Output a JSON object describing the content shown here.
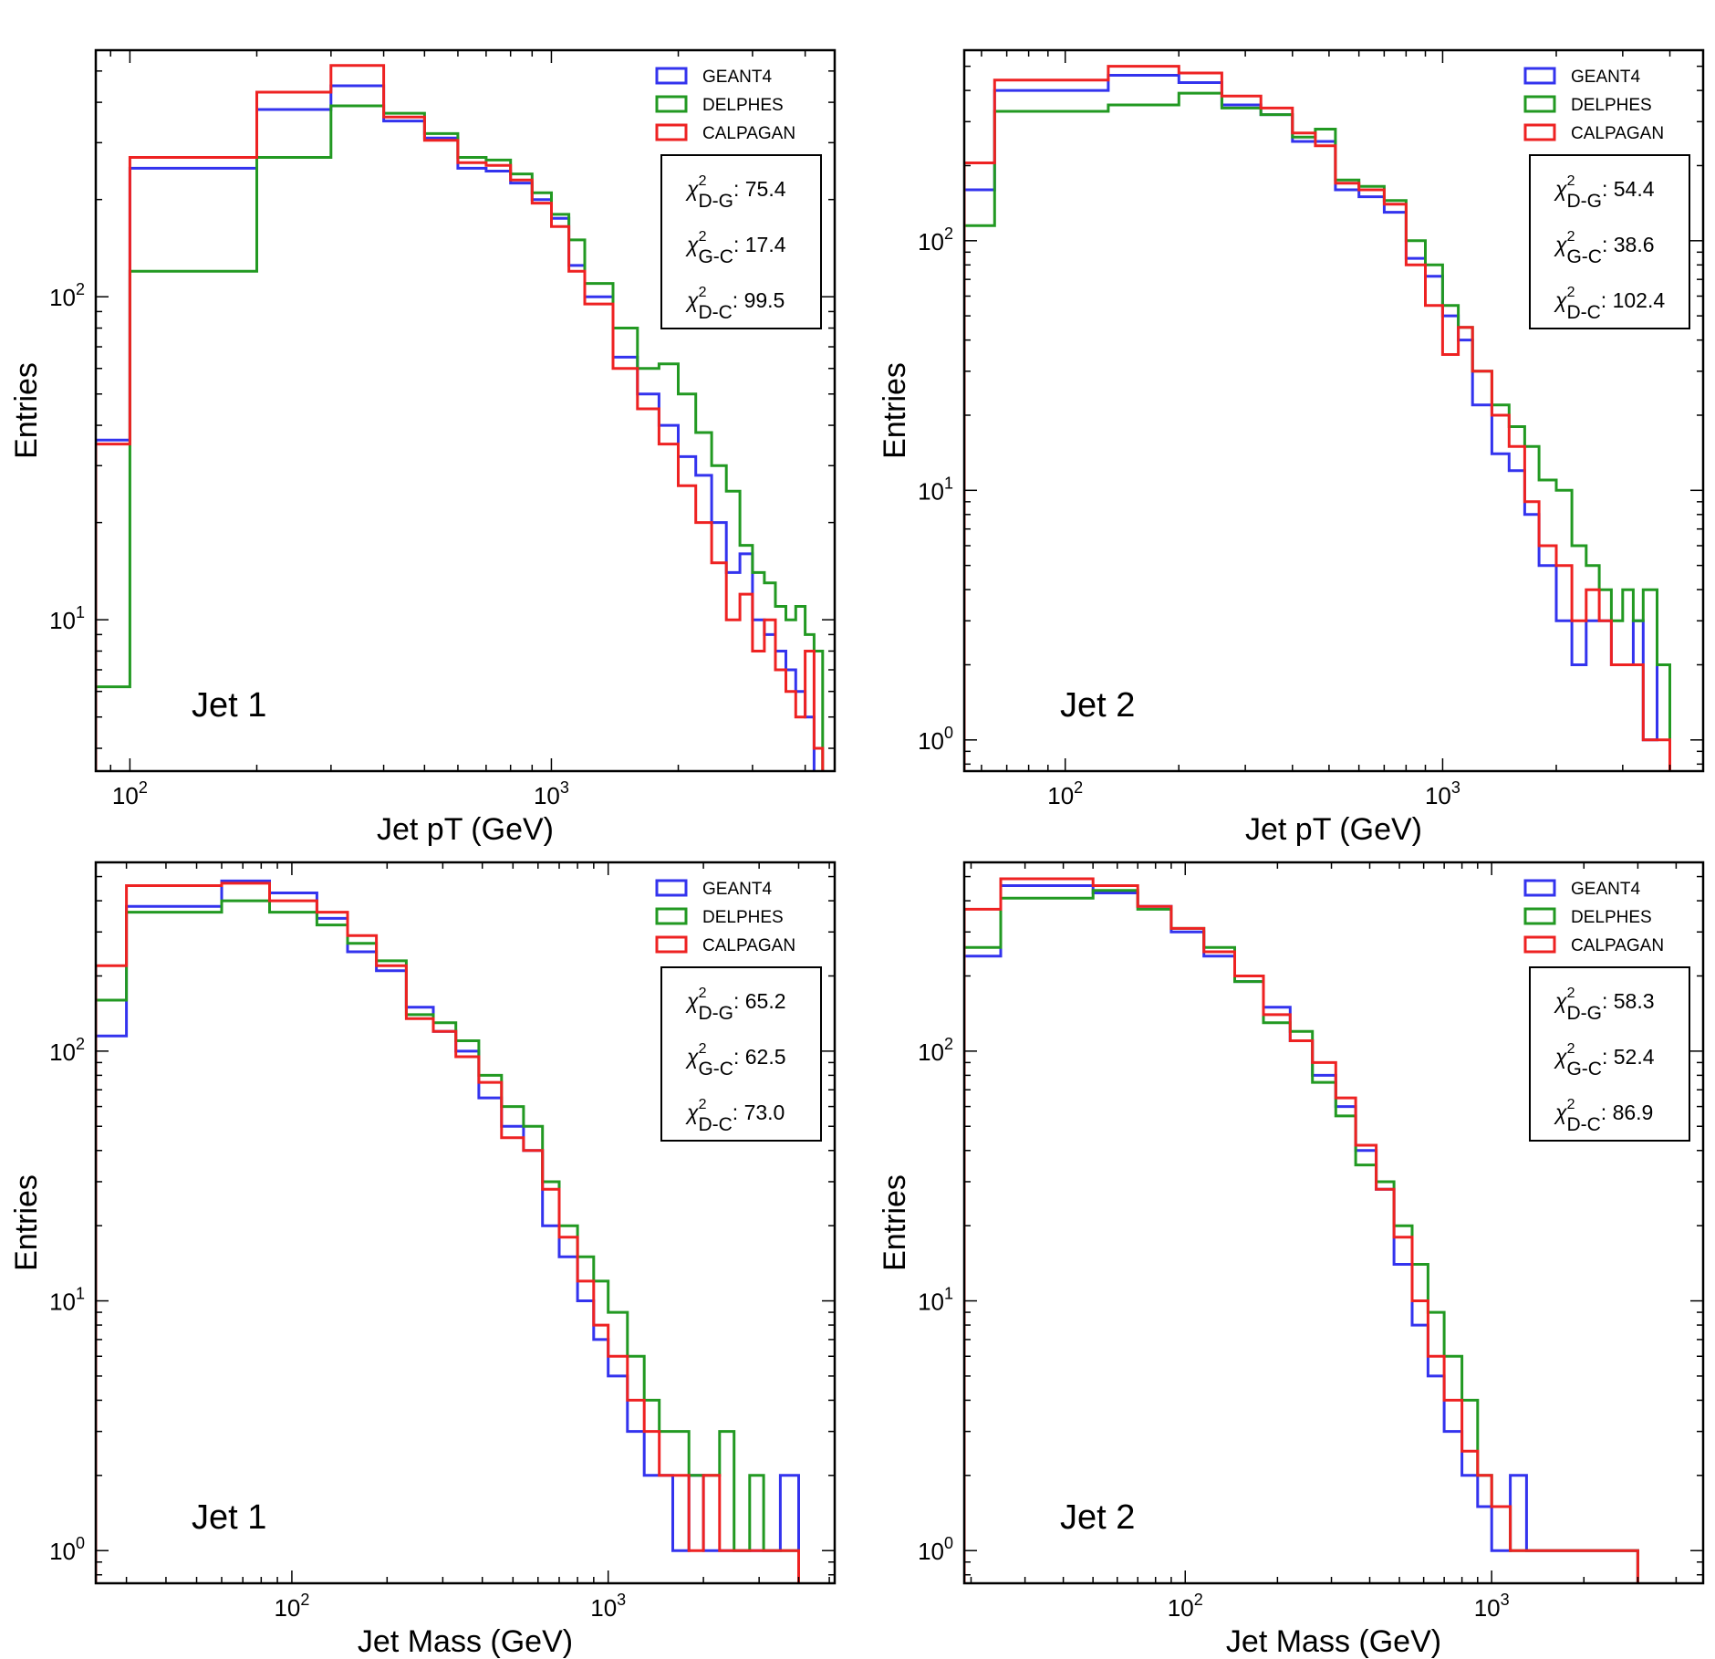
{
  "figure": {
    "title": ""
  },
  "chart_data": [
    {
      "id": "p1",
      "type": "histogram-step",
      "x_scale": "log",
      "y_scale": "log",
      "xlabel": "Jet pT (GeV)",
      "ylabel": "Entries",
      "xlim": [
        83,
        4700
      ],
      "ylim": [
        3.4,
        580
      ],
      "x_ticks": [
        {
          "base": "10",
          "exp": "2"
        },
        {
          "base": "10",
          "exp": "3"
        }
      ],
      "y_ticks": [
        {
          "base": "10",
          "exp": "1"
        },
        {
          "base": "10",
          "exp": "2"
        }
      ],
      "y_tick_values": [
        10,
        100
      ],
      "x_tick_values": [
        100,
        1000
      ],
      "annotation": "Jet 1",
      "chi2": [
        {
          "label": "χ",
          "sup": "2",
          "sub": "D-G",
          "value": ": 75.4"
        },
        {
          "label": "χ",
          "sup": "2",
          "sub": "G-C",
          "value": ": 17.4"
        },
        {
          "label": "χ",
          "sup": "2",
          "sub": "D-C",
          "value": ": 99.5"
        }
      ],
      "edges": [
        83,
        100,
        200,
        300,
        400,
        500,
        600,
        700,
        800,
        900,
        1000,
        1100,
        1200,
        1400,
        1600,
        1800,
        2000,
        2200,
        2400,
        2600,
        2800,
        3000,
        3200,
        3400,
        3600,
        3800,
        4000,
        4200,
        4400
      ],
      "series": [
        {
          "name": "GEANT4",
          "color": "#3333ee",
          "values": [
            36,
            250,
            380,
            450,
            350,
            310,
            250,
            245,
            225,
            200,
            175,
            125,
            100,
            65,
            50,
            40,
            32,
            28,
            20,
            14,
            16,
            10,
            9,
            8,
            7,
            6,
            5,
            3
          ]
        },
        {
          "name": "DELPHES",
          "color": "#229922",
          "values": [
            6.2,
            120,
            270,
            390,
            370,
            320,
            270,
            265,
            240,
            210,
            180,
            150,
            110,
            80,
            60,
            62,
            50,
            38,
            30,
            25,
            17,
            14,
            13,
            11,
            10,
            11,
            9,
            8
          ]
        },
        {
          "name": "CALPAGAN",
          "color": "#ee2222",
          "values": [
            35,
            270,
            430,
            520,
            360,
            305,
            260,
            255,
            230,
            195,
            165,
            120,
            95,
            60,
            45,
            35,
            26,
            20,
            15,
            10,
            12,
            8,
            10,
            7,
            6,
            5,
            8,
            4
          ]
        }
      ]
    },
    {
      "id": "p2",
      "type": "histogram-step",
      "x_scale": "log",
      "y_scale": "log",
      "xlabel": "Jet pT (GeV)",
      "ylabel": "Entries",
      "xlim": [
        54,
        4900
      ],
      "ylim": [
        0.75,
        580
      ],
      "x_ticks": [
        {
          "base": "10",
          "exp": "2"
        },
        {
          "base": "10",
          "exp": "3"
        }
      ],
      "y_ticks": [
        {
          "base": "10",
          "exp": "0"
        },
        {
          "base": "10",
          "exp": "1"
        },
        {
          "base": "10",
          "exp": "2"
        }
      ],
      "y_tick_values": [
        1,
        10,
        100
      ],
      "x_tick_values": [
        100,
        1000
      ],
      "annotation": "Jet 2",
      "chi2": [
        {
          "label": "χ",
          "sup": "2",
          "sub": "D-G",
          "value": ": 54.4"
        },
        {
          "label": "χ",
          "sup": "2",
          "sub": "G-C",
          "value": ": 38.6"
        },
        {
          "label": "χ",
          "sup": "2",
          "sub": "D-C",
          "value": ": 102.4"
        }
      ],
      "edges": [
        54,
        65,
        130,
        200,
        260,
        330,
        400,
        460,
        520,
        600,
        700,
        800,
        900,
        1000,
        1100,
        1200,
        1350,
        1500,
        1650,
        1800,
        2000,
        2200,
        2400,
        2600,
        2800,
        3000,
        3200,
        3400,
        3700,
        4000
      ],
      "series": [
        {
          "name": "GEANT4",
          "color": "#3333ee",
          "values": [
            160,
            400,
            460,
            430,
            350,
            320,
            250,
            250,
            160,
            150,
            130,
            85,
            72,
            50,
            40,
            22,
            14,
            12,
            8,
            5,
            3,
            2,
            3,
            3,
            2,
            2,
            3,
            1,
            2
          ]
        },
        {
          "name": "DELPHES",
          "color": "#229922",
          "values": [
            115,
            330,
            350,
            390,
            340,
            320,
            260,
            280,
            175,
            165,
            145,
            100,
            80,
            55,
            45,
            30,
            22,
            18,
            15,
            11,
            10,
            6,
            5,
            4,
            3,
            4,
            3,
            4,
            2
          ]
        },
        {
          "name": "CALPAGAN",
          "color": "#ee2222",
          "values": [
            205,
            440,
            500,
            470,
            380,
            340,
            270,
            240,
            170,
            160,
            140,
            80,
            55,
            35,
            45,
            30,
            20,
            15,
            9,
            6,
            5,
            3,
            4,
            3,
            2,
            2,
            2,
            1,
            1
          ]
        }
      ]
    },
    {
      "id": "p3",
      "type": "histogram-step",
      "x_scale": "log",
      "y_scale": "log",
      "xlabel": "Jet Mass (GeV)",
      "ylabel": "Entries",
      "xlim": [
        24,
        5200
      ],
      "ylim": [
        0.74,
        570
      ],
      "x_ticks": [
        {
          "base": "10",
          "exp": "2"
        },
        {
          "base": "10",
          "exp": "3"
        }
      ],
      "y_ticks": [
        {
          "base": "10",
          "exp": "0"
        },
        {
          "base": "10",
          "exp": "1"
        },
        {
          "base": "10",
          "exp": "2"
        }
      ],
      "y_tick_values": [
        1,
        10,
        100
      ],
      "x_tick_values": [
        100,
        1000
      ],
      "annotation": "Jet 1",
      "chi2": [
        {
          "label": "χ",
          "sup": "2",
          "sub": "D-G",
          "value": ": 65.2"
        },
        {
          "label": "χ",
          "sup": "2",
          "sub": "G-C",
          "value": ": 62.5"
        },
        {
          "label": "χ",
          "sup": "2",
          "sub": "D-C",
          "value": ": 73.0"
        }
      ],
      "edges": [
        24,
        30,
        60,
        85,
        120,
        150,
        185,
        230,
        280,
        330,
        390,
        460,
        540,
        620,
        700,
        800,
        900,
        1000,
        1150,
        1300,
        1450,
        1600,
        1800,
        2000,
        2250,
        2500,
        2800,
        3100,
        3500,
        4000
      ],
      "series": [
        {
          "name": "GEANT4",
          "color": "#3333ee",
          "values": [
            115,
            380,
            480,
            430,
            340,
            250,
            210,
            150,
            120,
            100,
            65,
            50,
            40,
            20,
            15,
            10,
            7,
            5,
            3,
            2,
            2,
            1,
            2,
            1,
            1,
            1,
            1,
            1,
            2
          ]
        },
        {
          "name": "DELPHES",
          "color": "#229922",
          "values": [
            160,
            360,
            400,
            360,
            320,
            270,
            230,
            140,
            130,
            110,
            80,
            60,
            50,
            30,
            20,
            15,
            12,
            9,
            6,
            4,
            3,
            3,
            2,
            2,
            3,
            1,
            2,
            1,
            1
          ]
        },
        {
          "name": "CALPAGAN",
          "color": "#ee2222",
          "values": [
            220,
            460,
            470,
            400,
            360,
            290,
            220,
            135,
            120,
            95,
            75,
            45,
            40,
            28,
            18,
            12,
            8,
            6,
            4,
            3,
            2,
            2,
            1,
            2,
            1,
            1,
            1,
            1,
            1
          ]
        }
      ]
    },
    {
      "id": "p4",
      "type": "histogram-step",
      "x_scale": "log",
      "y_scale": "log",
      "xlabel": "Jet Mass (GeV)",
      "ylabel": "Entries",
      "xlim": [
        19,
        4900
      ],
      "ylim": [
        0.74,
        570
      ],
      "x_ticks": [
        {
          "base": "10",
          "exp": "2"
        },
        {
          "base": "10",
          "exp": "3"
        }
      ],
      "y_ticks": [
        {
          "base": "10",
          "exp": "0"
        },
        {
          "base": "10",
          "exp": "1"
        },
        {
          "base": "10",
          "exp": "2"
        }
      ],
      "y_tick_values": [
        1,
        10,
        100
      ],
      "x_tick_values": [
        100,
        1000
      ],
      "annotation": "Jet 2",
      "chi2": [
        {
          "label": "χ",
          "sup": "2",
          "sub": "D-G",
          "value": ": 58.3"
        },
        {
          "label": "χ",
          "sup": "2",
          "sub": "G-C",
          "value": ": 52.4"
        },
        {
          "label": "χ",
          "sup": "2",
          "sub": "D-C",
          "value": ": 86.9"
        }
      ],
      "edges": [
        19,
        25,
        50,
        70,
        90,
        115,
        145,
        180,
        220,
        260,
        310,
        360,
        420,
        480,
        550,
        620,
        700,
        800,
        900,
        1000,
        1150,
        1300,
        1450,
        1600,
        1800,
        2000,
        2300,
        2600,
        3000
      ],
      "series": [
        {
          "name": "GEANT4",
          "color": "#3333ee",
          "values": [
            240,
            460,
            430,
            380,
            300,
            240,
            190,
            150,
            110,
            80,
            60,
            40,
            28,
            14,
            8,
            5,
            3,
            2,
            1.5,
            1,
            2,
            1,
            1,
            1,
            1,
            1,
            1,
            1
          ]
        },
        {
          "name": "DELPHES",
          "color": "#229922",
          "values": [
            260,
            410,
            440,
            370,
            310,
            260,
            190,
            130,
            120,
            75,
            55,
            35,
            30,
            20,
            14,
            9,
            6,
            4,
            2,
            1.5,
            1,
            1,
            1,
            1,
            1,
            1,
            1,
            1
          ]
        },
        {
          "name": "CALPAGAN",
          "color": "#ee2222",
          "values": [
            370,
            490,
            460,
            380,
            310,
            250,
            200,
            140,
            110,
            90,
            65,
            42,
            28,
            18,
            10,
            6,
            4,
            2.5,
            2,
            1.5,
            1,
            1,
            1,
            1,
            1,
            1,
            1,
            1
          ]
        }
      ]
    }
  ],
  "legend": [
    "GEANT4",
    "DELPHES",
    "CALPAGAN"
  ]
}
